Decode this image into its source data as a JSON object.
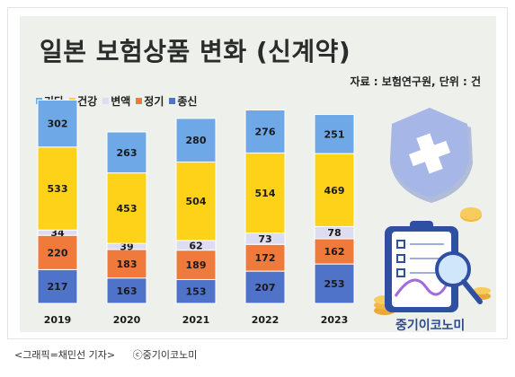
{
  "title": "일본 보험상품 변화 (신계약)",
  "source_note": "자료 : 보험연구원, 단위 : 건",
  "caption": {
    "credit": "<그래픽=채민선 기자>",
    "copyright": "ⓒ중기이코노미"
  },
  "brand": "중기이코노미",
  "chart_data": {
    "type": "bar",
    "stacked": true,
    "categories": [
      "2019",
      "2020",
      "2021",
      "2022",
      "2023"
    ],
    "series": [
      {
        "name": "종신",
        "color": "#4f73c9",
        "values": [
          217,
          163,
          153,
          207,
          253
        ]
      },
      {
        "name": "정기",
        "color": "#f07a3c",
        "values": [
          220,
          183,
          189,
          172,
          162
        ]
      },
      {
        "name": "변액",
        "color": "#dcdcf2",
        "values": [
          34,
          39,
          62,
          73,
          78
        ]
      },
      {
        "name": "건강",
        "color": "#ffd21a",
        "values": [
          533,
          453,
          504,
          514,
          469
        ]
      },
      {
        "name": "기타",
        "color": "#6fa8e6",
        "values": [
          302,
          263,
          280,
          276,
          251
        ]
      }
    ],
    "legend_order": [
      "기타",
      "건강",
      "변액",
      "정기",
      "종신"
    ],
    "legend": "top-left",
    "grid": false
  }
}
